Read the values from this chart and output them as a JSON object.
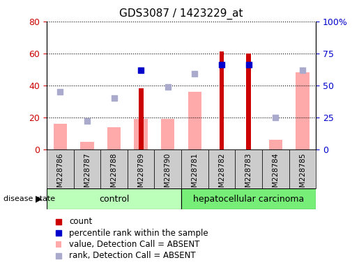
{
  "title": "GDS3087 / 1423229_at",
  "samples": [
    "GSM228786",
    "GSM228787",
    "GSM228788",
    "GSM228789",
    "GSM228790",
    "GSM228781",
    "GSM228782",
    "GSM228783",
    "GSM228784",
    "GSM228785"
  ],
  "groups": [
    "control",
    "control",
    "control",
    "control",
    "control",
    "hepatocellular carcinoma",
    "hepatocellular carcinoma",
    "hepatocellular carcinoma",
    "hepatocellular carcinoma",
    "hepatocellular carcinoma"
  ],
  "count": [
    0,
    0,
    0,
    38,
    0,
    0,
    61,
    60,
    0,
    0
  ],
  "percentile_rank_pct": [
    null,
    null,
    null,
    62,
    null,
    null,
    66,
    66,
    null,
    null
  ],
  "value_absent": [
    16,
    5,
    14,
    19,
    19,
    36,
    null,
    null,
    6,
    48
  ],
  "rank_absent_pct": [
    45,
    22,
    40,
    null,
    49,
    59,
    null,
    null,
    25,
    62
  ],
  "ylim_left": [
    0,
    80
  ],
  "ylim_right": [
    0,
    100
  ],
  "yticks_left": [
    0,
    20,
    40,
    60,
    80
  ],
  "yticks_right": [
    0,
    25,
    50,
    75,
    100
  ],
  "color_count": "#cc0000",
  "color_percentile": "#0000cc",
  "color_value_absent": "#ffaaaa",
  "color_rank_absent": "#aaaacc",
  "color_control_bg": "#bbffbb",
  "color_hcc_bg": "#77ee77",
  "color_xlabel_bg": "#cccccc",
  "legend_items": [
    "count",
    "percentile rank within the sample",
    "value, Detection Call = ABSENT",
    "rank, Detection Call = ABSENT"
  ]
}
